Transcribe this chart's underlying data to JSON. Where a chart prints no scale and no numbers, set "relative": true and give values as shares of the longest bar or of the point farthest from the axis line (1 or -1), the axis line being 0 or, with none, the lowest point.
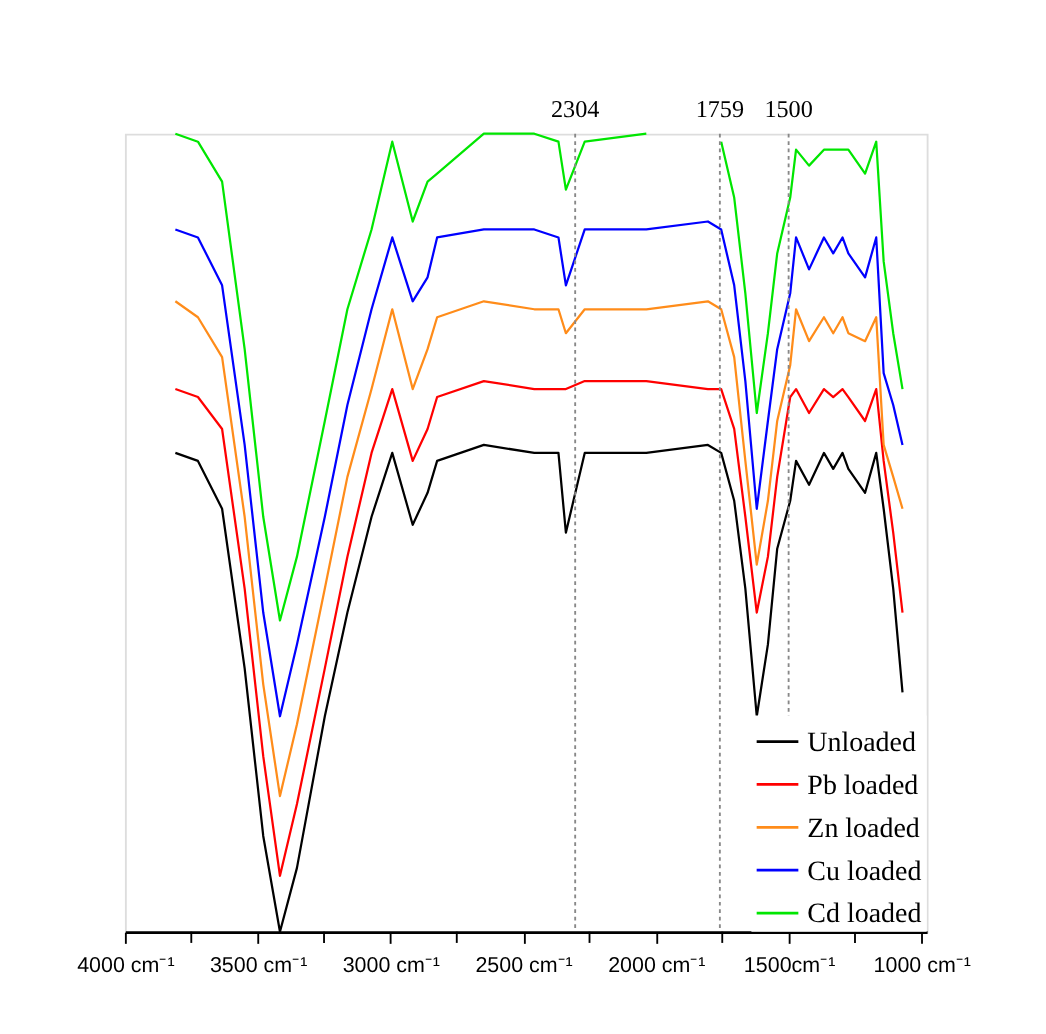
{
  "chart_data": {
    "type": "line",
    "relative": true,
    "x": [
      3810,
      3725,
      3634,
      3549,
      3479,
      3416,
      3352,
      3247,
      3162,
      3071,
      2993,
      2916,
      2860,
      2824,
      2648,
      2458,
      2367,
      2339,
      2268,
      2036,
      1804,
      1754,
      1705,
      1663,
      1620,
      1578,
      1543,
      1494,
      1472,
      1423,
      1367,
      1332,
      1297,
      1275,
      1212,
      1170,
      1142,
      1106,
      1071
    ],
    "xlim": [
      4000,
      980
    ],
    "xticks": [
      {
        "value": 4000,
        "label": "4000 cm⁻¹"
      },
      {
        "value": 3750,
        "label": null
      },
      {
        "value": 3500,
        "label": "3500 cm⁻¹"
      },
      {
        "value": 3250,
        "label": null
      },
      {
        "value": 3000,
        "label": "3000 cm⁻¹"
      },
      {
        "value": 2750,
        "label": null
      },
      {
        "value": 2500,
        "label": "2500 cm⁻¹"
      },
      {
        "value": 2250,
        "label": null
      },
      {
        "value": 2000,
        "label": "2000 cm⁻¹"
      },
      {
        "value": 1750,
        "label": null
      },
      {
        "value": 1500,
        "label": "1500cm⁻¹"
      },
      {
        "value": 1250,
        "label": null
      },
      {
        "value": 1000,
        "label": "1000 cm⁻¹"
      }
    ],
    "series": [
      {
        "name": "Unloaded",
        "color": "#000000",
        "values": [
          0.6,
          0.59,
          0.53,
          0.33,
          0.12,
          0,
          0.08,
          0.27,
          0.4,
          0.52,
          0.6,
          0.51,
          0.55,
          0.59,
          0.61,
          0.6,
          0.6,
          0.5,
          0.6,
          0.6,
          0.61,
          0.6,
          0.54,
          0.43,
          0.27,
          0.36,
          0.48,
          0.54,
          0.59,
          0.56,
          0.6,
          0.58,
          0.6,
          0.58,
          0.55,
          0.6,
          0.53,
          0.43,
          0.3
        ]
      },
      {
        "name": "Pb loaded",
        "color": "#ff0000",
        "values": [
          0.68,
          0.67,
          0.63,
          0.43,
          0.22,
          0.07,
          0.16,
          0.33,
          0.47,
          0.6,
          0.68,
          0.59,
          0.63,
          0.67,
          0.69,
          0.68,
          0.68,
          0.68,
          0.69,
          0.69,
          0.68,
          0.68,
          0.63,
          0.52,
          0.4,
          0.47,
          0.57,
          0.67,
          0.68,
          0.65,
          0.68,
          0.67,
          0.68,
          0.67,
          0.64,
          0.68,
          0.59,
          0.5,
          0.4
        ]
      },
      {
        "name": "Zn loaded",
        "color": "#ff8c1a",
        "values": [
          0.79,
          0.77,
          0.72,
          0.52,
          0.31,
          0.17,
          0.26,
          0.43,
          0.57,
          0.68,
          0.78,
          0.68,
          0.73,
          0.77,
          0.79,
          0.78,
          0.78,
          0.75,
          0.78,
          0.78,
          0.79,
          0.78,
          0.72,
          0.59,
          0.46,
          0.54,
          0.64,
          0.71,
          0.78,
          0.74,
          0.77,
          0.75,
          0.77,
          0.75,
          0.74,
          0.77,
          0.61,
          0.57,
          0.53
        ]
      },
      {
        "name": "Cu loaded",
        "color": "#0000ff",
        "values": [
          0.88,
          0.87,
          0.81,
          0.61,
          0.4,
          0.27,
          0.36,
          0.52,
          0.66,
          0.78,
          0.87,
          0.79,
          0.82,
          0.87,
          0.88,
          0.88,
          0.87,
          0.81,
          0.88,
          0.88,
          0.89,
          0.88,
          0.81,
          0.69,
          0.53,
          0.64,
          0.73,
          0.8,
          0.87,
          0.83,
          0.87,
          0.85,
          0.87,
          0.85,
          0.82,
          0.87,
          0.7,
          0.66,
          0.61
        ]
      },
      {
        "name": "Cd loaded",
        "color": "#00e600",
        "values": [
          1.0,
          0.99,
          0.94,
          0.73,
          0.52,
          0.39,
          0.47,
          0.64,
          0.78,
          0.88,
          0.99,
          0.89,
          0.94,
          0.95,
          1.0,
          1.0,
          0.99,
          0.93,
          0.99,
          1.0,
          null,
          0.99,
          0.92,
          0.8,
          0.65,
          0.75,
          0.85,
          0.92,
          0.98,
          0.96,
          0.98,
          0.98,
          0.98,
          0.98,
          0.95,
          0.99,
          0.84,
          0.75,
          0.68
        ]
      }
    ],
    "ref_lines": [
      {
        "axis": "x",
        "value": 2304,
        "label": "2304",
        "color": "#888888",
        "line_style": "dotted"
      },
      {
        "axis": "x",
        "value": 1759,
        "label": "1759",
        "color": "#888888",
        "line_style": "dotted"
      },
      {
        "axis": "x",
        "value": 1500,
        "label": "1500",
        "color": "#888888",
        "line_style": "dotted"
      }
    ],
    "legend": "bottom right",
    "grid": false,
    "marker": "none",
    "line_style": "solid"
  }
}
